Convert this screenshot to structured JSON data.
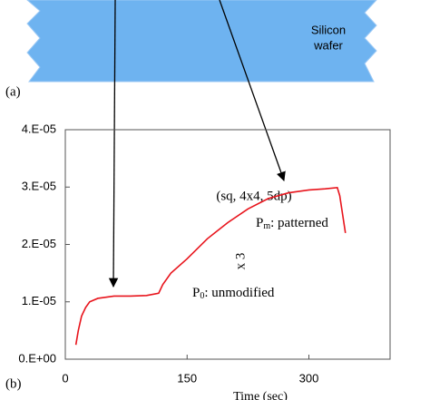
{
  "panel_a_label": "(a)",
  "wafer_label": [
    "Silicon",
    "wafer"
  ],
  "chart_data": {
    "type": "line",
    "panel_label": "(b)",
    "xlabel": "Time (sec)",
    "x": [
      13,
      16,
      20,
      25,
      30,
      40,
      50,
      60,
      80,
      100,
      115,
      120,
      130,
      150,
      175,
      200,
      225,
      250,
      275,
      300,
      320,
      335,
      338,
      345
    ],
    "series": [
      {
        "color": "#e8141c",
        "values": [
          2.5e-06,
          5e-06,
          7.5e-06,
          9e-06,
          1e-05,
          1.06e-05,
          1.08e-05,
          1.1e-05,
          1.1e-05,
          1.11e-05,
          1.15e-05,
          1.3e-05,
          1.5e-05,
          1.75e-05,
          2.1e-05,
          2.38e-05,
          2.62e-05,
          2.8e-05,
          2.9e-05,
          2.95e-05,
          2.97e-05,
          2.99e-05,
          2.85e-05,
          2.2e-05
        ]
      }
    ],
    "xlim": [
      0,
      400
    ],
    "xticks": [
      0,
      150,
      300
    ],
    "ylim": [
      0,
      4e-05
    ],
    "yticks": [
      {
        "value": 0,
        "label": "0.E+00"
      },
      {
        "value": 1e-05,
        "label": "1.E-05"
      },
      {
        "value": 2e-05,
        "label": "2.E-05"
      },
      {
        "value": 3e-05,
        "label": "3.E-05"
      },
      {
        "value": 4e-05,
        "label": "4.E-05"
      }
    ],
    "annotations": {
      "sample": "(sq, 4x4, 5dp)",
      "pm_p": "P",
      "pm_sub": "m",
      "pm_rest": ": patterned",
      "p0_p": "P",
      "p0_sub": "0",
      "p0_rest": ": unmodified",
      "scale": "x 3"
    }
  }
}
